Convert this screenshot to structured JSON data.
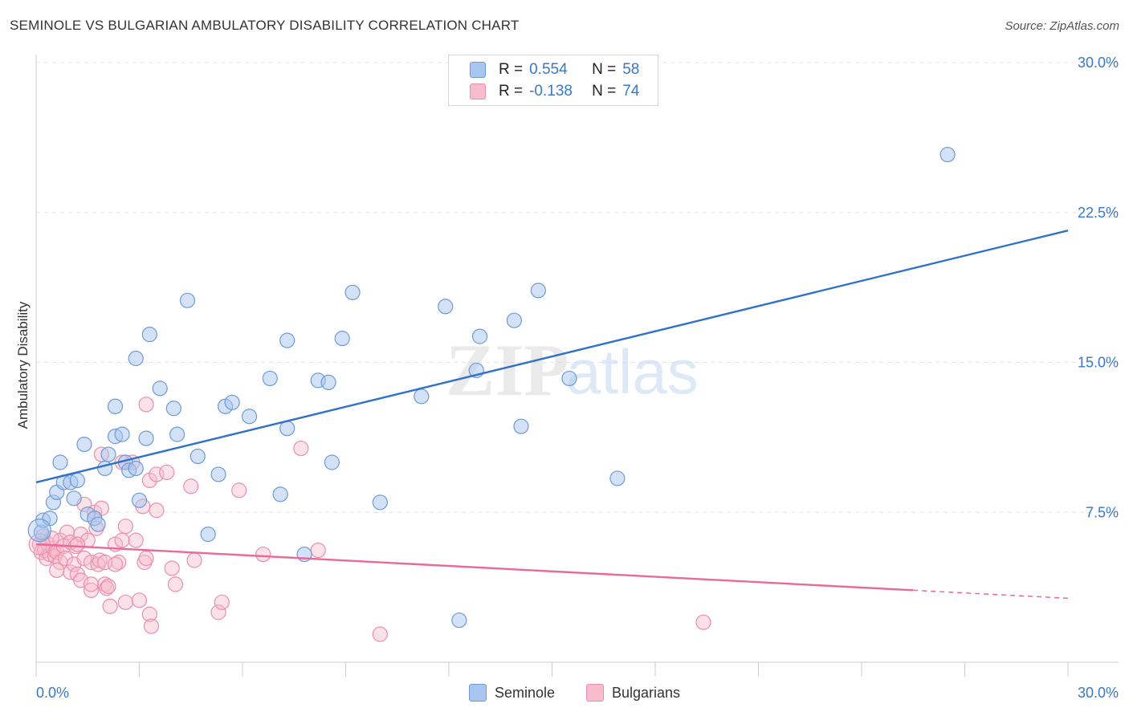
{
  "header": {
    "title": "SEMINOLE VS BULGARIAN AMBULATORY DISABILITY CORRELATION CHART",
    "source": "Source: ZipAtlas.com"
  },
  "watermark": {
    "zip": "ZIP",
    "atlas": "atlas"
  },
  "legend": {
    "rows": [
      {
        "r_label": "R =",
        "r_value": "0.554",
        "n_label": "N =",
        "n_value": "58",
        "color": "#a8c6ef",
        "stroke": "#6f9ad6"
      },
      {
        "r_label": "R =",
        "r_value": "-0.138",
        "n_label": "N =",
        "n_value": "74",
        "color": "#f7bccd",
        "stroke": "#ec8eab"
      }
    ]
  },
  "bottom_legend": {
    "series1": "Seminole",
    "series2": "Bulgarians"
  },
  "colors": {
    "blue_fill": "#a8c6ef",
    "blue_stroke": "#6f9ad6",
    "blue_line": "#2f72c9",
    "pink_fill": "#f7bccd",
    "pink_stroke": "#ec8eab",
    "pink_line": "#e8699a",
    "tick_label": "#3a78c9",
    "grid": "#e3e3e3"
  },
  "chart_data": {
    "type": "scatter",
    "title": "SEMINOLE VS BULGARIAN AMBULATORY DISABILITY CORRELATION CHART",
    "xlabel": "",
    "ylabel": "Ambulatory Disability",
    "xlim": [
      0,
      30
    ],
    "ylim": [
      0,
      30
    ],
    "x_tick_labels": [
      "0.0%",
      "30.0%"
    ],
    "y_tick_labels": [
      "7.5%",
      "15.0%",
      "22.5%",
      "30.0%"
    ],
    "y_ticks": [
      7.5,
      15.0,
      22.5,
      30.0
    ],
    "grid": true,
    "legend_placement": "top-center",
    "series": [
      {
        "name": "Seminole",
        "r": 0.554,
        "n": 58,
        "trend": {
          "x": [
            0,
            30
          ],
          "y": [
            9.0,
            21.6
          ]
        },
        "points": [
          [
            0.15,
            6.5
          ],
          [
            0.2,
            7.1
          ],
          [
            0.4,
            7.2
          ],
          [
            0.5,
            8.0
          ],
          [
            0.6,
            8.5
          ],
          [
            0.7,
            10.0
          ],
          [
            0.8,
            9.0
          ],
          [
            1.0,
            9.0
          ],
          [
            1.1,
            8.2
          ],
          [
            1.2,
            9.1
          ],
          [
            1.4,
            10.9
          ],
          [
            1.5,
            7.4
          ],
          [
            1.7,
            7.2
          ],
          [
            1.8,
            6.9
          ],
          [
            2.0,
            9.7
          ],
          [
            2.1,
            10.4
          ],
          [
            2.3,
            12.8
          ],
          [
            2.3,
            11.3
          ],
          [
            2.5,
            11.4
          ],
          [
            2.6,
            10.0
          ],
          [
            2.7,
            9.6
          ],
          [
            2.9,
            9.7
          ],
          [
            3.0,
            8.1
          ],
          [
            2.9,
            15.2
          ],
          [
            3.2,
            11.2
          ],
          [
            3.3,
            16.4
          ],
          [
            3.6,
            13.7
          ],
          [
            4.0,
            12.7
          ],
          [
            4.1,
            11.4
          ],
          [
            4.4,
            18.1
          ],
          [
            4.7,
            10.3
          ],
          [
            5.0,
            6.4
          ],
          [
            5.3,
            9.4
          ],
          [
            5.5,
            12.8
          ],
          [
            5.7,
            13.0
          ],
          [
            6.2,
            12.3
          ],
          [
            6.8,
            14.2
          ],
          [
            7.1,
            8.4
          ],
          [
            7.3,
            16.1
          ],
          [
            7.3,
            11.7
          ],
          [
            7.8,
            5.4
          ],
          [
            8.2,
            14.1
          ],
          [
            8.5,
            14.0
          ],
          [
            8.6,
            10.0
          ],
          [
            8.9,
            16.2
          ],
          [
            9.2,
            18.5
          ],
          [
            10.0,
            8.0
          ],
          [
            11.2,
            13.3
          ],
          [
            11.9,
            17.8
          ],
          [
            12.3,
            2.1
          ],
          [
            12.8,
            14.6
          ],
          [
            12.9,
            16.3
          ],
          [
            13.9,
            17.1
          ],
          [
            14.1,
            11.8
          ],
          [
            14.6,
            18.6
          ],
          [
            15.5,
            14.2
          ],
          [
            16.9,
            9.2
          ],
          [
            26.5,
            25.4
          ]
        ]
      },
      {
        "name": "Bulgarians",
        "r": -0.138,
        "n": 74,
        "trend": {
          "x": [
            0,
            25.5
          ],
          "y": [
            5.9,
            3.6
          ]
        },
        "trend_dashed": {
          "x": [
            25.5,
            30
          ],
          "y": [
            3.6,
            3.2
          ]
        },
        "points": [
          [
            0.1,
            5.9
          ],
          [
            0.15,
            5.5
          ],
          [
            0.2,
            6.3
          ],
          [
            0.25,
            5.6
          ],
          [
            0.3,
            5.2
          ],
          [
            0.35,
            5.9
          ],
          [
            0.4,
            5.4
          ],
          [
            0.5,
            5.7
          ],
          [
            0.55,
            5.3
          ],
          [
            0.6,
            5.5
          ],
          [
            0.7,
            5.0
          ],
          [
            0.7,
            6.1
          ],
          [
            0.8,
            5.8
          ],
          [
            0.85,
            5.2
          ],
          [
            0.9,
            6.5
          ],
          [
            1.0,
            6.0
          ],
          [
            1.0,
            4.5
          ],
          [
            1.1,
            4.9
          ],
          [
            1.15,
            5.8
          ],
          [
            1.2,
            4.4
          ],
          [
            1.3,
            6.4
          ],
          [
            1.3,
            4.1
          ],
          [
            1.4,
            7.9
          ],
          [
            1.4,
            5.2
          ],
          [
            1.5,
            6.1
          ],
          [
            1.6,
            3.6
          ],
          [
            1.6,
            5.0
          ],
          [
            1.7,
            7.5
          ],
          [
            1.75,
            6.7
          ],
          [
            1.8,
            4.9
          ],
          [
            1.85,
            5.1
          ],
          [
            1.9,
            7.7
          ],
          [
            2.0,
            5.0
          ],
          [
            1.9,
            10.4
          ],
          [
            2.0,
            3.9
          ],
          [
            2.05,
            3.7
          ],
          [
            2.1,
            3.8
          ],
          [
            2.15,
            2.8
          ],
          [
            2.3,
            5.9
          ],
          [
            2.4,
            5.0
          ],
          [
            2.5,
            6.1
          ],
          [
            2.5,
            10.0
          ],
          [
            2.6,
            3.0
          ],
          [
            2.6,
            6.8
          ],
          [
            2.8,
            10.0
          ],
          [
            2.9,
            6.1
          ],
          [
            3.0,
            3.1
          ],
          [
            3.1,
            7.8
          ],
          [
            3.15,
            5.0
          ],
          [
            3.2,
            5.2
          ],
          [
            3.2,
            12.9
          ],
          [
            3.3,
            9.1
          ],
          [
            3.3,
            2.4
          ],
          [
            3.35,
            1.8
          ],
          [
            3.5,
            9.4
          ],
          [
            3.5,
            7.6
          ],
          [
            3.8,
            9.5
          ],
          [
            3.95,
            4.7
          ],
          [
            4.05,
            3.9
          ],
          [
            4.5,
            8.8
          ],
          [
            4.6,
            5.1
          ],
          [
            5.3,
            2.5
          ],
          [
            5.4,
            3.0
          ],
          [
            5.9,
            8.6
          ],
          [
            6.6,
            5.4
          ],
          [
            7.7,
            10.7
          ],
          [
            8.2,
            5.6
          ],
          [
            10.0,
            1.4
          ],
          [
            19.4,
            2.0
          ],
          [
            1.6,
            3.9
          ],
          [
            2.3,
            4.9
          ],
          [
            0.6,
            4.6
          ],
          [
            1.2,
            5.9
          ],
          [
            0.45,
            6.2
          ]
        ]
      }
    ]
  }
}
